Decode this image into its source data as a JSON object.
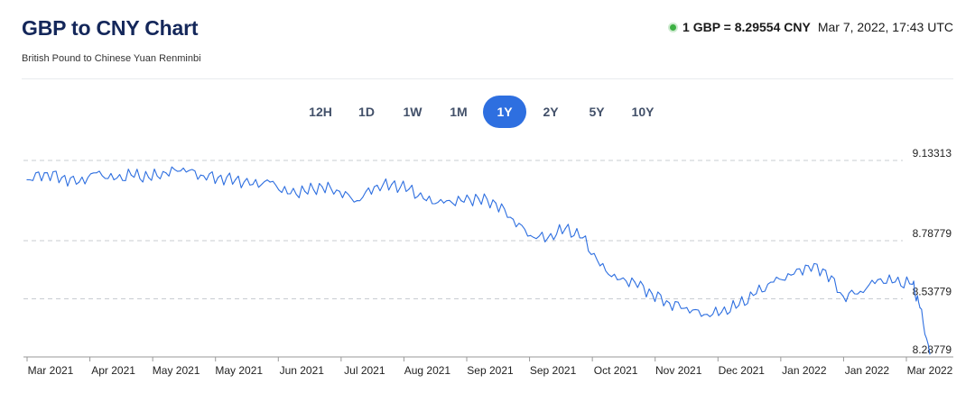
{
  "header": {
    "title": "GBP to CNY Chart",
    "subtitle": "British Pound to Chinese Yuan Renminbi",
    "rate_text": "1 GBP = 8.29554 CNY",
    "rate_time": "Mar 7, 2022, 17:43 UTC",
    "status_color": "#3cb043"
  },
  "ranges": {
    "items": [
      "12H",
      "1D",
      "1W",
      "1M",
      "1Y",
      "2Y",
      "5Y",
      "10Y"
    ],
    "active": "1Y",
    "accent_color": "#2e6fe0"
  },
  "chart_data": {
    "type": "line",
    "title": "",
    "xlabel": "",
    "ylabel": "",
    "ylim": [
      8.28779,
      9.13313
    ],
    "y_ticks": [
      {
        "value": 9.13313,
        "label": "9.13313"
      },
      {
        "value": 8.78779,
        "label": "8.78779"
      },
      {
        "value": 8.53779,
        "label": "8.53779"
      },
      {
        "value": 8.28779,
        "label": "8.28779"
      }
    ],
    "x_ticks": [
      "Mar 2021",
      "Apr 2021",
      "May 2021",
      "May 2021",
      "Jun 2021",
      "Jul 2021",
      "Aug 2021",
      "Sep 2021",
      "Sep 2021",
      "Oct 2021",
      "Nov 2021",
      "Dec 2021",
      "Jan 2022",
      "Jan 2022",
      "Mar 2022"
    ],
    "grid": "horizontal dashed",
    "line_color": "#2e6fe0",
    "series": [
      {
        "x": [
          "2021-03-08",
          "2021-03-15",
          "2021-03-22",
          "2021-03-29",
          "2021-04-05",
          "2021-04-12",
          "2021-04-19",
          "2021-04-26",
          "2021-05-03",
          "2021-05-10",
          "2021-05-17",
          "2021-05-24",
          "2021-05-31",
          "2021-06-07",
          "2021-06-14",
          "2021-06-21",
          "2021-06-28",
          "2021-07-05",
          "2021-07-12",
          "2021-07-19",
          "2021-07-26",
          "2021-08-02",
          "2021-08-09",
          "2021-08-16",
          "2021-08-23",
          "2021-08-30",
          "2021-09-06",
          "2021-09-13",
          "2021-09-20",
          "2021-09-27",
          "2021-10-04",
          "2021-10-11",
          "2021-10-18",
          "2021-10-25",
          "2021-11-01",
          "2021-11-08",
          "2021-11-15",
          "2021-11-22",
          "2021-11-29",
          "2021-12-06",
          "2021-12-13",
          "2021-12-20",
          "2021-12-27",
          "2022-01-03",
          "2022-01-10",
          "2022-01-17",
          "2022-01-24",
          "2022-01-31",
          "2022-02-07",
          "2022-02-14",
          "2022-02-21",
          "2022-02-28",
          "2022-03-03",
          "2022-03-07"
        ],
        "y": [
          9.05,
          9.08,
          9.06,
          9.04,
          9.08,
          9.05,
          9.07,
          9.06,
          9.08,
          9.1,
          9.07,
          9.06,
          9.05,
          9.03,
          9.04,
          8.99,
          9.0,
          9.02,
          9.0,
          8.96,
          9.02,
          9.03,
          9.01,
          8.96,
          8.95,
          8.96,
          8.97,
          8.95,
          8.88,
          8.81,
          8.8,
          8.84,
          8.8,
          8.68,
          8.62,
          8.61,
          8.56,
          8.52,
          8.5,
          8.47,
          8.48,
          8.51,
          8.56,
          8.61,
          8.64,
          8.68,
          8.66,
          8.55,
          8.57,
          8.62,
          8.61,
          8.6,
          8.5,
          8.3
        ]
      }
    ]
  }
}
